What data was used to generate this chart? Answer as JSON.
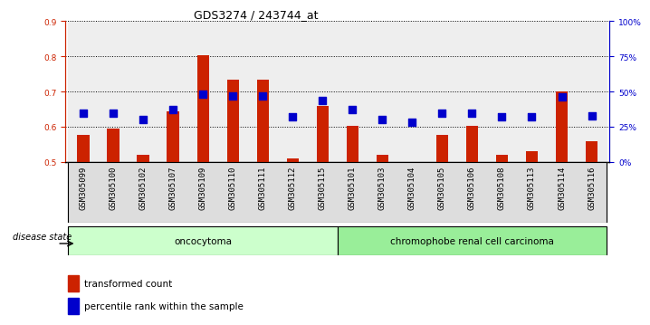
{
  "title": "GDS3274 / 243744_at",
  "samples": [
    "GSM305099",
    "GSM305100",
    "GSM305102",
    "GSM305107",
    "GSM305109",
    "GSM305110",
    "GSM305111",
    "GSM305112",
    "GSM305115",
    "GSM305101",
    "GSM305103",
    "GSM305104",
    "GSM305105",
    "GSM305106",
    "GSM305108",
    "GSM305113",
    "GSM305114",
    "GSM305116"
  ],
  "red_values": [
    0.578,
    0.595,
    0.52,
    0.643,
    0.803,
    0.735,
    0.735,
    0.51,
    0.66,
    0.603,
    0.52,
    0.498,
    0.578,
    0.603,
    0.52,
    0.53,
    0.7,
    0.558
  ],
  "blue_values": [
    35,
    35,
    30,
    37,
    48,
    47,
    47,
    32,
    44,
    37,
    30,
    28,
    35,
    35,
    32,
    32,
    46,
    33
  ],
  "ylim_left": [
    0.5,
    0.9
  ],
  "ylim_right": [
    0,
    100
  ],
  "yticks_left": [
    0.5,
    0.6,
    0.7,
    0.8,
    0.9
  ],
  "yticks_right": [
    0,
    25,
    50,
    75,
    100
  ],
  "ytick_labels_right": [
    "0%",
    "25%",
    "50%",
    "75%",
    "100%"
  ],
  "bar_color": "#cc2200",
  "dot_color": "#0000cc",
  "bar_bottom": 0.5,
  "dot_size": 30,
  "oncocytoma_samples": 9,
  "oncocytoma_label": "oncocytoma",
  "carcinoma_label": "chromophobe renal cell carcinoma",
  "disease_state_label": "disease state",
  "legend_red": "transformed count",
  "legend_blue": "percentile rank within the sample",
  "oncocytoma_color": "#ccffcc",
  "carcinoma_color": "#99ee99",
  "background_color": "#ffffff",
  "grid_color": "#000000",
  "title_fontsize": 9,
  "tick_fontsize": 6.5,
  "label_fontsize": 7.5
}
